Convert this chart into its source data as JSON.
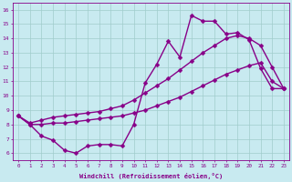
{
  "x": [
    0,
    1,
    2,
    3,
    4,
    5,
    6,
    7,
    8,
    9,
    10,
    11,
    12,
    13,
    14,
    15,
    16,
    17,
    18,
    19,
    20,
    21,
    22,
    23
  ],
  "line_jagged": [
    8.6,
    8.0,
    7.2,
    6.9,
    6.2,
    6.0,
    6.5,
    6.6,
    6.6,
    6.5,
    8.0,
    10.9,
    12.2,
    13.8,
    12.7,
    15.6,
    15.2,
    15.2,
    14.3,
    14.4,
    13.9,
    11.9,
    10.5,
    10.5
  ],
  "line_upper": [
    8.6,
    8.1,
    8.3,
    8.5,
    8.6,
    8.7,
    8.8,
    8.9,
    9.1,
    9.3,
    9.7,
    10.2,
    10.7,
    11.2,
    11.8,
    12.4,
    13.0,
    13.5,
    14.0,
    14.2,
    14.0,
    13.5,
    12.0,
    10.5
  ],
  "line_lower": [
    8.6,
    8.0,
    8.0,
    8.1,
    8.1,
    8.2,
    8.3,
    8.4,
    8.5,
    8.6,
    8.8,
    9.0,
    9.3,
    9.6,
    9.9,
    10.3,
    10.7,
    11.1,
    11.5,
    11.8,
    12.1,
    12.3,
    11.0,
    10.5
  ],
  "bg_color": "#c8eaf0",
  "line_color": "#880088",
  "grid_color": "#a0cccc",
  "xlabel": "Windchill (Refroidissement éolien,°C)",
  "yticks": [
    6,
    7,
    8,
    9,
    10,
    11,
    12,
    13,
    14,
    15,
    16
  ],
  "xlim": [
    -0.5,
    23.5
  ],
  "ylim": [
    5.5,
    16.5
  ],
  "markersize": 2.5,
  "linewidth": 1.0
}
